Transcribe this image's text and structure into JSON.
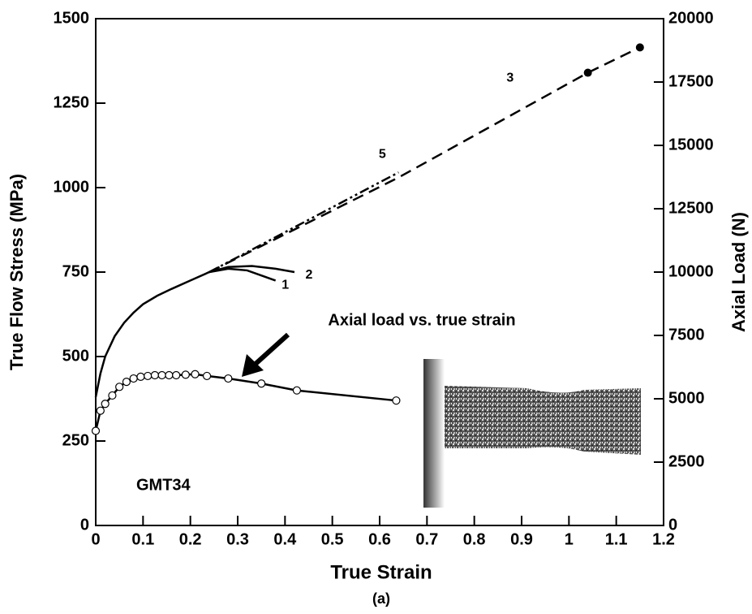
{
  "chart_data": {
    "type": "line",
    "xlabel": "True Strain",
    "ylabel": "True Flow Stress (MPa)",
    "y2label": "Axial Load (N)",
    "caption": "(a)",
    "specimen_label": "GMT34",
    "annotation": "Axial load vs. true strain",
    "xlim": [
      0,
      1.2
    ],
    "xticks": [
      0,
      0.1,
      0.2,
      0.3,
      0.4,
      0.5,
      0.6,
      0.7,
      0.8,
      0.9,
      1,
      1.1,
      1.2
    ],
    "ylim": [
      0,
      1500
    ],
    "yticks": [
      0,
      250,
      500,
      750,
      1000,
      1250,
      1500
    ],
    "y2lim": [
      0,
      20000
    ],
    "y2ticks": [
      0,
      2500,
      5000,
      7500,
      10000,
      12500,
      15000,
      17500,
      20000
    ],
    "series": [
      {
        "name": "1",
        "color": "#000000",
        "dash": "solid",
        "x": [
          0,
          0.01,
          0.02,
          0.04,
          0.06,
          0.08,
          0.1,
          0.13,
          0.16,
          0.2,
          0.24,
          0.28,
          0.32,
          0.35,
          0.38
        ],
        "values": [
          380,
          450,
          500,
          560,
          600,
          630,
          655,
          680,
          700,
          725,
          750,
          760,
          755,
          740,
          725
        ]
      },
      {
        "name": "2",
        "color": "#000000",
        "dash": "solid",
        "x": [
          0.24,
          0.28,
          0.33,
          0.38,
          0.42
        ],
        "values": [
          750,
          765,
          768,
          760,
          750
        ]
      },
      {
        "name": "3",
        "color": "#000000",
        "dash": "dash",
        "x": [
          0.24,
          0.64,
          1.04,
          1.15
        ],
        "values": [
          750,
          1030,
          1340,
          1415
        ]
      },
      {
        "name": "5",
        "color": "#000000",
        "dash": "dashdot",
        "x": [
          0.24,
          0.64
        ],
        "values": [
          750,
          1045
        ]
      },
      {
        "color": "#000000",
        "dash": "solid",
        "axis": "y2",
        "marker": "circle",
        "x": [
          0,
          0.01,
          0.02,
          0.035,
          0.05,
          0.065,
          0.08,
          0.095,
          0.11,
          0.125,
          0.14,
          0.155,
          0.17,
          0.19,
          0.21,
          0.235,
          0.28,
          0.35,
          0.425,
          0.635
        ],
        "values": [
          3733,
          4530,
          4800,
          5130,
          5470,
          5670,
          5800,
          5870,
          5900,
          5930,
          5930,
          5930,
          5930,
          5950,
          5970,
          5900,
          5800,
          5600,
          5330,
          4930
        ]
      }
    ],
    "points": {
      "x": [
        1.04,
        1.15
      ],
      "values": [
        1340,
        1415
      ],
      "color": "#000000"
    }
  }
}
